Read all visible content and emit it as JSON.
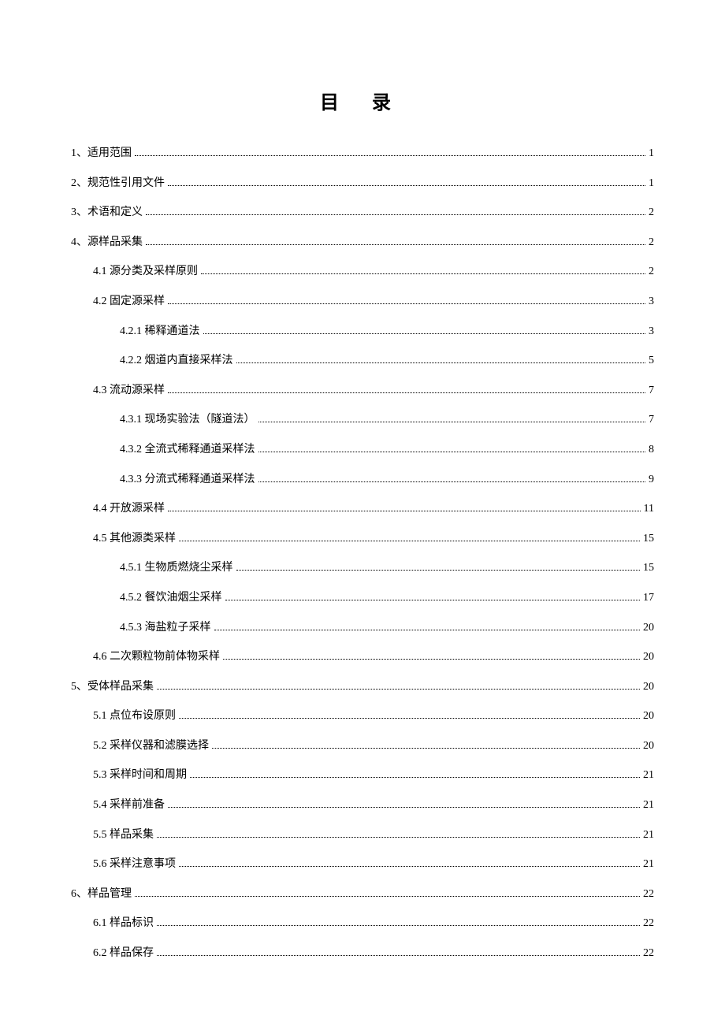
{
  "title": "目 录",
  "entries": [
    {
      "level": 0,
      "label": "1、适用范围",
      "page": "1"
    },
    {
      "level": 0,
      "label": "2、规范性引用文件",
      "page": "1"
    },
    {
      "level": 0,
      "label": "3、术语和定义",
      "page": "2"
    },
    {
      "level": 0,
      "label": "4、源样品采集",
      "page": "2"
    },
    {
      "level": 1,
      "label": "4.1 源分类及采样原则",
      "page": "2"
    },
    {
      "level": 1,
      "label": "4.2 固定源采样",
      "page": "3"
    },
    {
      "level": 2,
      "label": "4.2.1 稀释通道法",
      "page": "3"
    },
    {
      "level": 2,
      "label": "4.2.2 烟道内直接采样法",
      "page": "5"
    },
    {
      "level": 1,
      "label": "4.3 流动源采样",
      "page": "7"
    },
    {
      "level": 2,
      "label": "4.3.1 现场实验法（隧道法）",
      "page": "7"
    },
    {
      "level": 2,
      "label": "4.3.2 全流式稀释通道采样法",
      "page": "8"
    },
    {
      "level": 2,
      "label": "4.3.3 分流式稀释通道采样法",
      "page": "9"
    },
    {
      "level": 1,
      "label": "4.4 开放源采样",
      "page": "11"
    },
    {
      "level": 1,
      "label": "4.5 其他源类采样",
      "page": "15"
    },
    {
      "level": 2,
      "label": "4.5.1 生物质燃烧尘采样",
      "page": "15"
    },
    {
      "level": 2,
      "label": "4.5.2 餐饮油烟尘采样",
      "page": "17"
    },
    {
      "level": 2,
      "label": "4.5.3 海盐粒子采样",
      "page": "20"
    },
    {
      "level": 1,
      "label": "4.6 二次颗粒物前体物采样",
      "page": "20"
    },
    {
      "level": 0,
      "label": "5、受体样品采集",
      "page": "20"
    },
    {
      "level": 1,
      "label": "5.1 点位布设原则",
      "page": "20"
    },
    {
      "level": 1,
      "label": "5.2 采样仪器和滤膜选择",
      "page": "20"
    },
    {
      "level": 1,
      "label": "5.3 采样时间和周期",
      "page": "21"
    },
    {
      "level": 1,
      "label": "5.4 采样前准备",
      "page": "21"
    },
    {
      "level": 1,
      "label": "5.5 样品采集",
      "page": "21"
    },
    {
      "level": 1,
      "label": "5.6 采样注意事项",
      "page": "21"
    },
    {
      "level": 0,
      "label": "6、样品管理",
      "page": "22"
    },
    {
      "level": 1,
      "label": "6.1 样品标识",
      "page": "22"
    },
    {
      "level": 1,
      "label": "6.2 样品保存",
      "page": "22"
    }
  ],
  "styling": {
    "background_color": "#ffffff",
    "text_color": "#000000",
    "title_fontsize": 24,
    "entry_fontsize": 14,
    "entry_spacing": 18,
    "indent_level_1": 28,
    "indent_level_2": 62,
    "dot_leader_color": "#000000",
    "font_family": "SimSun"
  }
}
